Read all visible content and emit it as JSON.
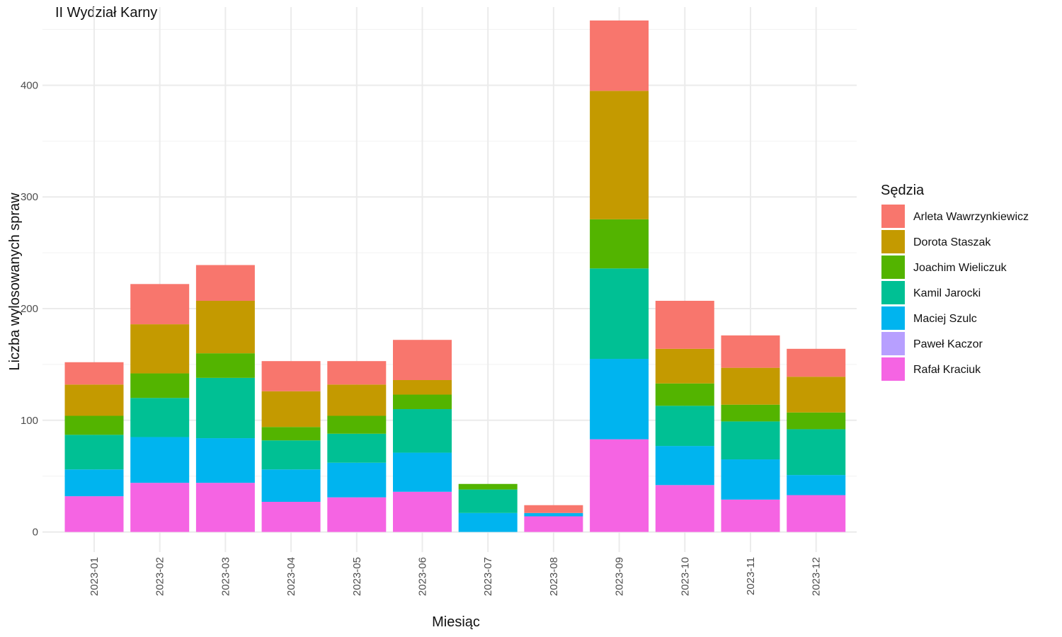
{
  "chart_data": {
    "type": "bar",
    "stacked": true,
    "title": "II Wydział Karny",
    "xlabel": "Miesiąc",
    "ylabel": "Liczba wylosowanych spraw",
    "ylim": [
      -18,
      470
    ],
    "yticks": [
      0,
      100,
      200,
      300,
      400
    ],
    "grid": true,
    "legend_position": "right",
    "legend_title": "Sędzia",
    "categories": [
      "2023-01",
      "2023-02",
      "2023-03",
      "2023-04",
      "2023-05",
      "2023-06",
      "2023-07",
      "2023-08",
      "2023-09",
      "2023-10",
      "2023-11",
      "2023-12"
    ],
    "series": [
      {
        "name": "Rafał Kraciuk",
        "color": "#F564E3",
        "values": [
          32,
          44,
          44,
          27,
          31,
          36,
          0,
          14,
          83,
          42,
          29,
          33
        ]
      },
      {
        "name": "Paweł Kaczor",
        "color": "#B79FFF",
        "values": [
          0,
          0,
          0,
          0,
          0,
          0,
          0,
          0,
          0,
          0,
          0,
          0
        ]
      },
      {
        "name": "Maciej Szulc",
        "color": "#00B4EF",
        "values": [
          24,
          41,
          40,
          29,
          31,
          35,
          17,
          3,
          72,
          35,
          36,
          18
        ]
      },
      {
        "name": "Kamil Jarocki",
        "color": "#00C094",
        "values": [
          31,
          35,
          54,
          26,
          26,
          39,
          21,
          0,
          81,
          36,
          34,
          41
        ]
      },
      {
        "name": "Joachim Wieliczuk",
        "color": "#53B400",
        "values": [
          17,
          22,
          22,
          12,
          16,
          13,
          5,
          0,
          44,
          20,
          15,
          15
        ]
      },
      {
        "name": "Dorota Staszak",
        "color": "#C49A00",
        "values": [
          28,
          44,
          47,
          32,
          28,
          13,
          0,
          0,
          115,
          31,
          33,
          32
        ]
      },
      {
        "name": "Arleta Wawrzynkiewicz",
        "color": "#F8766D",
        "values": [
          20,
          36,
          32,
          27,
          21,
          36,
          0,
          7,
          63,
          43,
          29,
          25
        ]
      }
    ],
    "legend_order": [
      "Arleta Wawrzynkiewicz",
      "Dorota Staszak",
      "Joachim Wieliczuk",
      "Kamil Jarocki",
      "Maciej Szulc",
      "Paweł Kaczor",
      "Rafał Kraciuk"
    ]
  }
}
